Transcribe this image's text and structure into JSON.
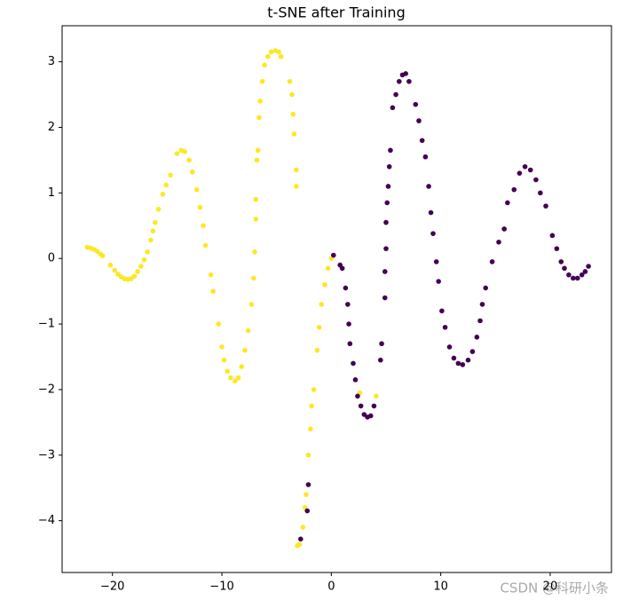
{
  "chart_data": {
    "type": "scatter",
    "title": "t-SNE after Training",
    "watermark": "CSDN @科研小条",
    "xlim": [
      -24.6,
      25.6
    ],
    "ylim": [
      -4.79,
      3.55
    ],
    "xticks": [
      {
        "value": -20,
        "label": "−20"
      },
      {
        "value": -10,
        "label": "−10"
      },
      0,
      10,
      20
    ],
    "yticks": [
      {
        "value": -4,
        "label": "−4"
      },
      {
        "value": -3,
        "label": "−3"
      },
      {
        "value": -2,
        "label": "−2"
      },
      {
        "value": -1,
        "label": "−1"
      },
      0,
      1,
      2,
      3
    ],
    "series": [
      {
        "color": "#fde725",
        "x": [
          -22.3,
          -22,
          -21.7,
          -21.4,
          -21.1,
          -20.9,
          -20.2,
          -19.8,
          -19.5,
          -19.2,
          -18.9,
          -18.6,
          -18.3,
          -18,
          -17.7,
          -17.4,
          -17.1,
          -16.8,
          -16.5,
          -16.3,
          -16.1,
          -15.8,
          -15.4,
          -15.1,
          -14.7,
          -14.1,
          -13.7,
          -13.4,
          -13,
          -12.7,
          -12.3,
          -12,
          -11.7,
          -11.5,
          -11,
          -10.8,
          -10.3,
          -10,
          -9.8,
          -9.5,
          -9.2,
          -8.8,
          -8.5,
          -8.2,
          -7.9,
          -7.6,
          -7.3,
          -7.1,
          -7,
          -6.9,
          -6.9,
          -6.8,
          -6.7,
          -6.6,
          -6.5,
          -6.3,
          -6.1,
          -5.8,
          -5.5,
          -5.1,
          -4.8,
          -4.6,
          -3.8,
          -3.6,
          -3.5,
          -3.4,
          -3.2,
          -3.2,
          -3.1,
          -2.9,
          -2.6,
          -2.4,
          -2.3,
          -2.1,
          -1.9,
          -1.8,
          -1.6,
          -1.3,
          -1.1,
          -0.9,
          -0.6,
          -0.3,
          0,
          2.6,
          4.1
        ],
        "values": [
          0.17,
          0.16,
          0.14,
          0.11,
          0.07,
          0.04,
          -0.1,
          -0.18,
          -0.24,
          -0.28,
          -0.31,
          -0.32,
          -0.31,
          -0.27,
          -0.2,
          -0.12,
          -0.02,
          0.1,
          0.28,
          0.42,
          0.55,
          0.75,
          0.98,
          1.12,
          1.27,
          1.6,
          1.65,
          1.63,
          1.5,
          1.32,
          1.05,
          0.78,
          0.5,
          0.2,
          -0.25,
          -0.5,
          -1,
          -1.35,
          -1.55,
          -1.72,
          -1.82,
          -1.87,
          -1.82,
          -1.65,
          -1.4,
          -1.1,
          -0.7,
          -0.3,
          0.1,
          0.6,
          0.9,
          1.5,
          1.65,
          2.15,
          2.4,
          2.7,
          2.95,
          3.08,
          3.15,
          3.17,
          3.15,
          3.08,
          2.7,
          2.5,
          2.2,
          1.9,
          1.35,
          1.1,
          -4.38,
          -4.36,
          -4.1,
          -3.8,
          -3.6,
          -3,
          -2.6,
          -2.25,
          -2,
          -1.4,
          -1.05,
          -0.7,
          -0.4,
          -0.15,
          0,
          -2.05,
          -2.1
        ]
      },
      {
        "color": "#440154",
        "x": [
          -2.8,
          -2.2,
          -2.1,
          0.2,
          0.8,
          1,
          1.3,
          1.5,
          1.6,
          1.7,
          2,
          2.2,
          2.4,
          2.7,
          3,
          3.3,
          3.6,
          3.9,
          4.5,
          4.6,
          4.9,
          4.9,
          5,
          5,
          5.1,
          5.2,
          5.3,
          5.4,
          5.6,
          5.9,
          6.2,
          6.5,
          6.8,
          7.1,
          7.7,
          8,
          8.3,
          8.6,
          8.9,
          9.1,
          9.3,
          9.6,
          9.8,
          10.1,
          10.4,
          10.8,
          11.2,
          11.6,
          12,
          12.5,
          12.9,
          13.3,
          13.6,
          13.8,
          14.1,
          14.7,
          15.3,
          15.8,
          16.1,
          16.7,
          17.2,
          17.7,
          18.2,
          18.7,
          19.1,
          19.6,
          20.2,
          20.6,
          21,
          21.3,
          21.7,
          22.1,
          22.5,
          22.9,
          23.2,
          23.5
        ],
        "values": [
          -4.28,
          -3.85,
          -3.45,
          0.05,
          -0.1,
          -0.15,
          -0.45,
          -0.7,
          -1,
          -1.3,
          -1.6,
          -1.85,
          -2.1,
          -2.25,
          -2.38,
          -2.42,
          -2.4,
          -2.25,
          -1.55,
          -1.3,
          -0.6,
          -0.2,
          0.15,
          0.55,
          0.85,
          1.1,
          1.4,
          1.65,
          2.3,
          2.5,
          2.7,
          2.8,
          2.82,
          2.7,
          2.35,
          2.1,
          1.8,
          1.55,
          1.1,
          0.7,
          0.38,
          -0.05,
          -0.35,
          -0.8,
          -1.05,
          -1.35,
          -1.52,
          -1.6,
          -1.62,
          -1.55,
          -1.42,
          -1.2,
          -0.95,
          -0.7,
          -0.45,
          -0.05,
          0.25,
          0.45,
          0.85,
          1.05,
          1.3,
          1.4,
          1.35,
          1.2,
          1,
          0.8,
          0.35,
          0.15,
          -0.05,
          -0.15,
          -0.25,
          -0.3,
          -0.3,
          -0.25,
          -0.2,
          -0.12
        ]
      }
    ]
  }
}
